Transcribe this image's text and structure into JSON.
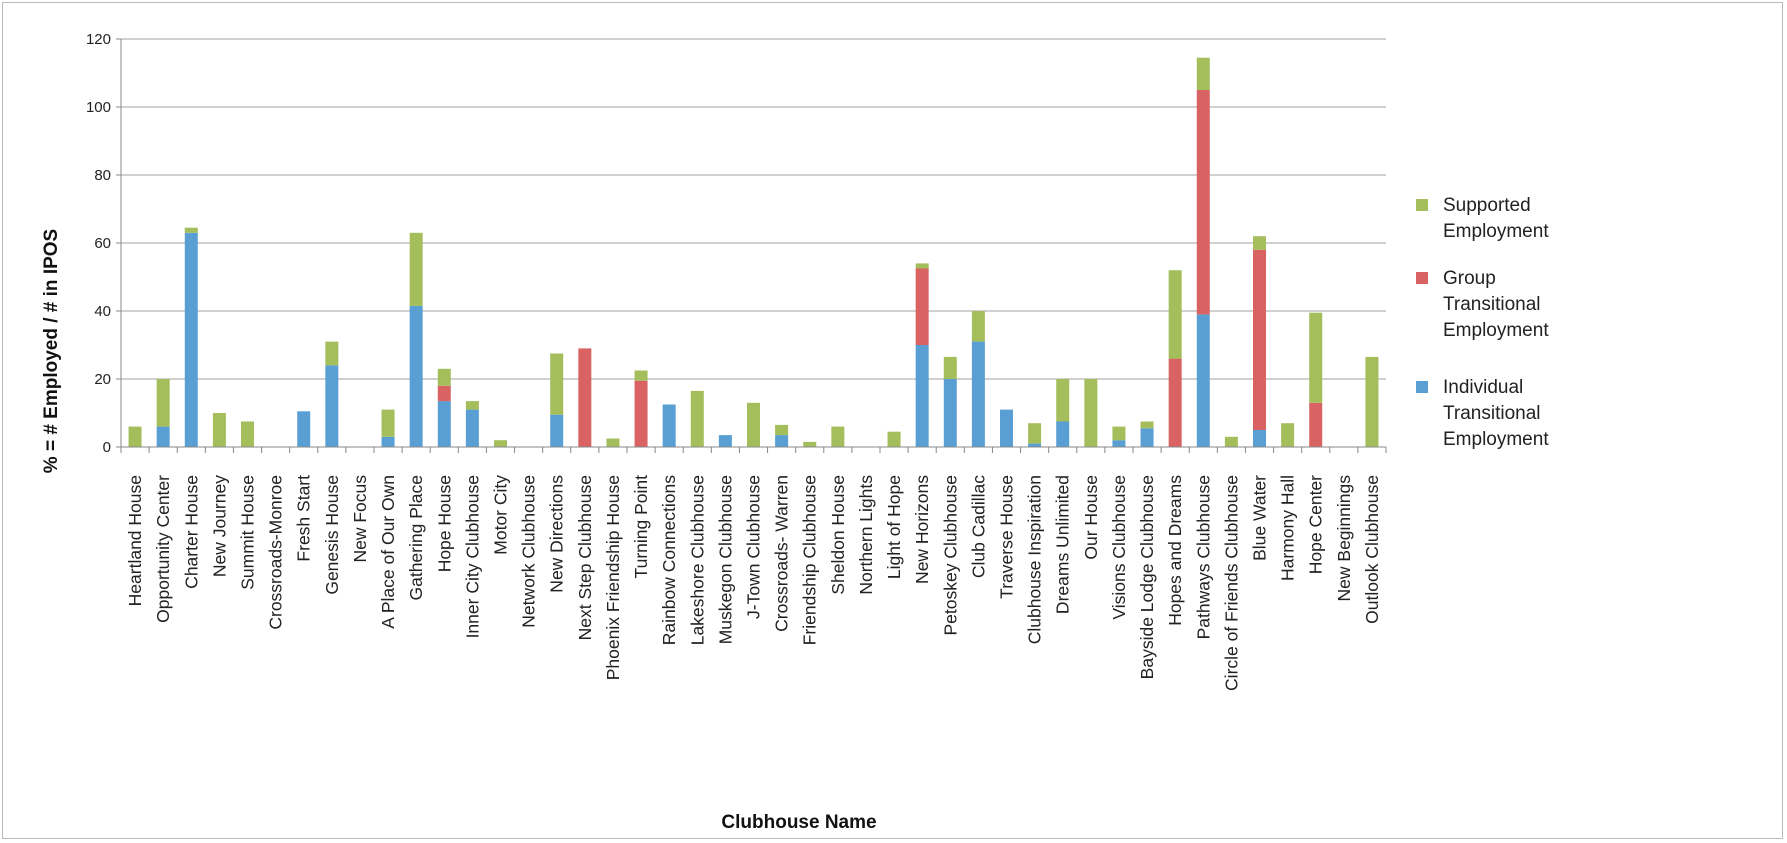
{
  "chart_data": {
    "type": "bar",
    "stacked": true,
    "xlabel": "Clubhouse Name",
    "ylabel": "% = # Employed / # in IPOS",
    "ylim": [
      0,
      120
    ],
    "yticks": [
      0,
      20,
      40,
      60,
      80,
      100,
      120
    ],
    "grid": true,
    "legend_position": "right",
    "categories": [
      "Heartland House",
      "Opportunity Center",
      "Charter House",
      "New Journey",
      "Summit House",
      "Crossroads-Monroe",
      "Fresh Start",
      "Genesis House",
      "New Focus",
      "A Place of Our Own",
      "Gathering Place",
      "Hope House",
      "Inner City Clubhouse",
      "Motor City",
      "Network Clubhouse",
      "New Directions",
      "Next Step Clubhouse",
      "Phoenix Friendship House",
      "Turning Point",
      "Rainbow Connections",
      "Lakeshore Clubhouse",
      "Muskegon Clubhouse",
      "J-Town Clubhouse",
      "Crossroads- Warren",
      "Friendship Clubhouse",
      "Sheldon House",
      "Northern Lights",
      "Light of Hope",
      "New Horizons",
      "Petoskey Clubhouse",
      "Club Cadillac",
      "Traverse House",
      "Clubhouse Inspiration",
      "Dreams Unlimited",
      "Our House",
      "Visions Clubhouse",
      "Bayside Lodge Clubhouse",
      "Hopes and Dreams",
      "Pathways Clubhouse",
      "Circle of Friends Clubhouse",
      "Blue Water",
      "Harmony Hall",
      "Hope Center",
      "New Beginnings",
      "Outlook Clubhouse"
    ],
    "series": [
      {
        "name": "Individual Transitional Employment",
        "color": "#5a9fd4",
        "values": [
          0,
          6,
          63,
          0,
          0,
          0,
          10.5,
          24,
          0,
          3,
          41.5,
          13.5,
          11,
          0,
          0,
          9.5,
          0,
          0,
          0,
          12.5,
          0,
          3.5,
          0,
          3.5,
          0,
          0,
          0,
          0,
          30,
          20,
          31,
          11,
          1,
          7.5,
          0,
          2,
          5.5,
          0,
          39,
          0,
          5,
          0,
          0,
          0,
          0
        ]
      },
      {
        "name": "Group Transitional Employment",
        "color": "#d96262",
        "values": [
          0,
          0,
          0,
          0,
          0,
          0,
          0,
          0,
          0,
          0,
          0,
          4.5,
          0,
          0,
          0,
          0,
          29,
          0,
          19.5,
          0,
          0,
          0,
          0,
          0,
          0,
          0,
          0,
          0,
          22.5,
          0,
          0,
          0,
          0,
          0,
          0,
          0,
          0,
          26,
          66,
          0,
          53,
          0,
          13,
          0,
          0
        ]
      },
      {
        "name": "Supported Employment",
        "color": "#a4be5c",
        "values": [
          6,
          14,
          1.5,
          10,
          7.5,
          0,
          0,
          7,
          0,
          8,
          21.5,
          5,
          2.5,
          2,
          0,
          18,
          0,
          2.5,
          3,
          0,
          16.5,
          0,
          13,
          3,
          1.5,
          6,
          0,
          4.5,
          1.5,
          6.5,
          9,
          0,
          6,
          12.5,
          20,
          4,
          2,
          26,
          9.5,
          3,
          4,
          7,
          26.5,
          0,
          26.5
        ]
      }
    ],
    "legend": [
      {
        "label_lines": [
          "Supported",
          "Employment"
        ],
        "color": "#a4be5c"
      },
      {
        "label_lines": [
          "Group",
          "Transitional",
          "Employment"
        ],
        "color": "#d96262"
      },
      {
        "label_lines": [
          "Individual",
          "Transitional",
          "Employment"
        ],
        "color": "#5a9fd4"
      }
    ]
  }
}
